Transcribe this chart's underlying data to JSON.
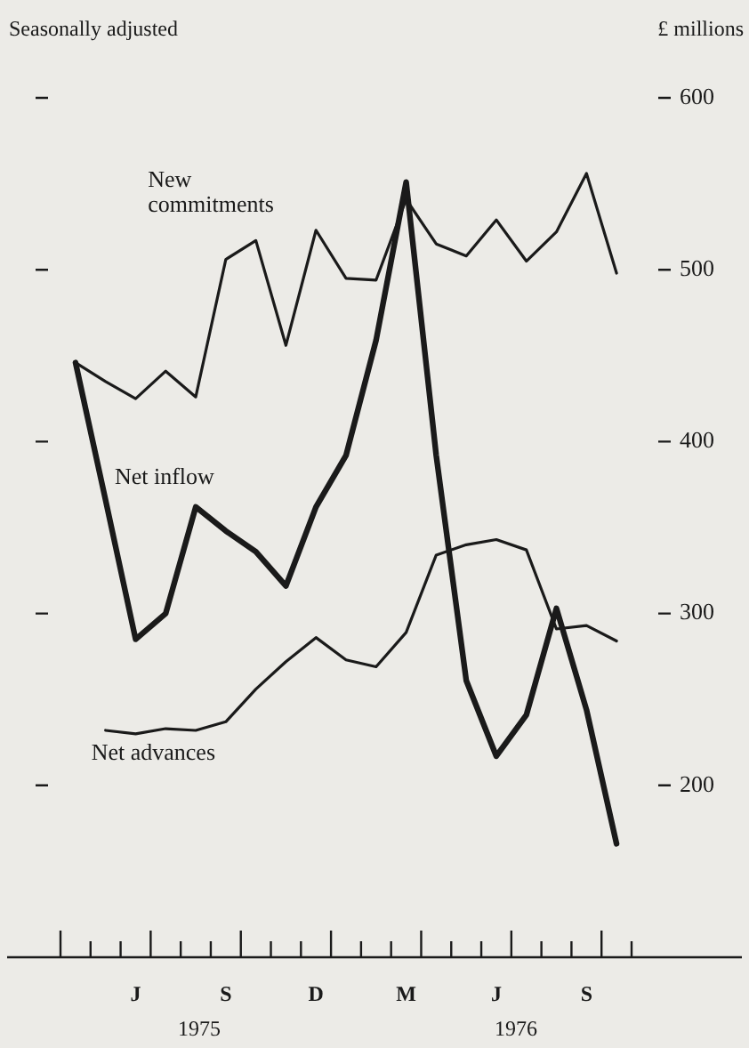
{
  "chart_data": {
    "type": "line",
    "ylabel": "£ millions",
    "annotations": [
      "Seasonally adjusted",
      "1975",
      "1976"
    ],
    "categories": [
      null,
      null,
      "J",
      null,
      null,
      "S",
      null,
      null,
      "D",
      null,
      null,
      "M",
      null,
      null,
      "J",
      null,
      null,
      "S",
      null
    ],
    "series": [
      {
        "name": "New commitments",
        "color": "#1a1a1a",
        "values": [
          446,
          435,
          425,
          441,
          426,
          506,
          517,
          456,
          523,
          495,
          494,
          541,
          515,
          508,
          529,
          505,
          522,
          556,
          498
        ]
      },
      {
        "name": "Net inflow",
        "color": "#1a1a1a",
        "values": [
          446,
          366,
          285,
          300,
          362,
          348,
          336,
          316,
          362,
          392,
          459,
          551,
          392,
          261,
          217,
          241,
          303,
          244,
          166
        ]
      },
      {
        "name": "Net advances",
        "color": "#1a1a1a",
        "values": [
          null,
          232,
          230,
          233,
          232,
          237,
          256,
          272,
          286,
          273,
          269,
          289,
          334,
          340,
          343,
          337,
          291,
          293,
          284
        ]
      }
    ],
    "ylim": [
      100,
      600
    ],
    "yticks": [
      200,
      300,
      400,
      500,
      600
    ],
    "grid": false,
    "legend": false,
    "marker": "none",
    "line_style": "solid"
  }
}
